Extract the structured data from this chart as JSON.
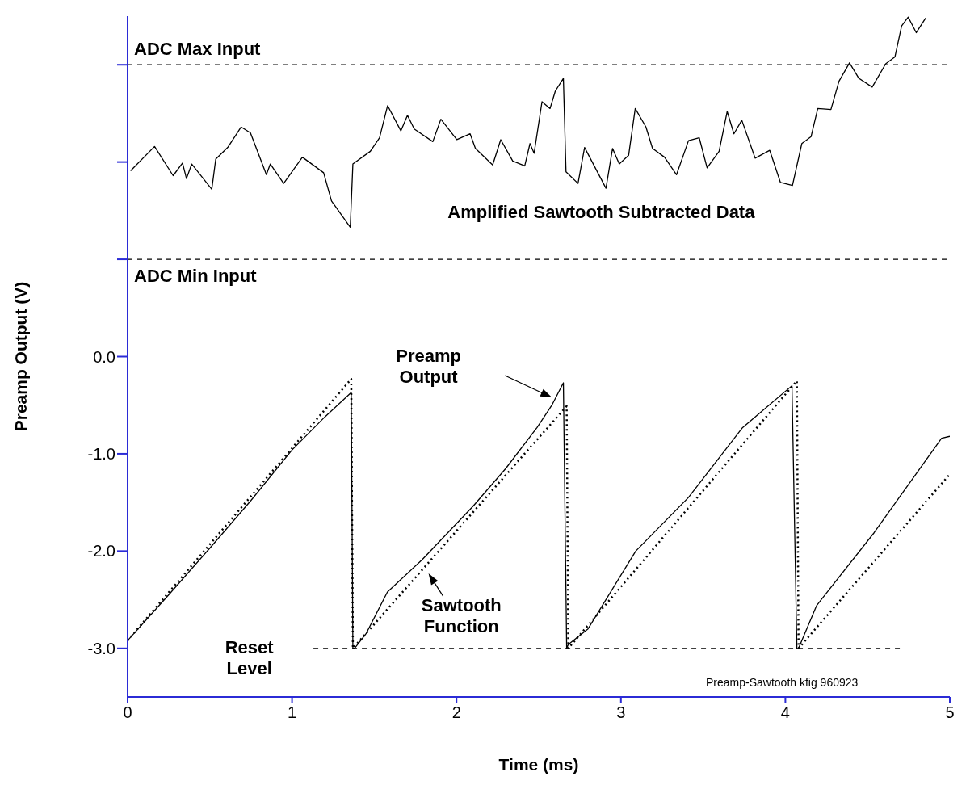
{
  "chart_data": {
    "type": "line",
    "xlabel": "Time (ms)",
    "ylabel": "Preamp Output (V)",
    "xlim": [
      0,
      5
    ],
    "xticks": [
      0,
      1,
      2,
      3,
      4,
      5
    ],
    "ylim": [
      -3.5,
      3.5
    ],
    "yticks": [
      {
        "value": -3,
        "label": "-3.0"
      },
      {
        "value": -2,
        "label": "-2.0"
      },
      {
        "value": -1,
        "label": "-1.0"
      },
      {
        "value": 0,
        "label": "0.0"
      },
      {
        "value": 1,
        "label": null
      },
      {
        "value": 2,
        "label": null
      },
      {
        "value": 3,
        "label": null
      }
    ],
    "tick_labels": "xy",
    "series": [
      {
        "name": "Amplified Sawtooth Subtracted Data",
        "color": "#000000",
        "line_style": "solid",
        "x": [
          0.018,
          0.164,
          0.277,
          0.334,
          0.358,
          0.39,
          0.512,
          0.536,
          0.609,
          0.69,
          0.747,
          0.844,
          0.868,
          0.949,
          1.063,
          1.192,
          1.24,
          1.354,
          1.37,
          1.476,
          1.532,
          1.581,
          1.662,
          1.702,
          1.743,
          1.856,
          1.905,
          2.002,
          2.083,
          2.115,
          2.22,
          2.269,
          2.342,
          2.415,
          2.447,
          2.472,
          2.52,
          2.569,
          2.601,
          2.65,
          2.666,
          2.739,
          2.779,
          2.909,
          2.949,
          2.99,
          3.047,
          3.087,
          3.152,
          3.192,
          3.265,
          3.338,
          3.411,
          3.476,
          3.524,
          3.597,
          3.646,
          3.687,
          3.735,
          3.816,
          3.905,
          3.97,
          4.043,
          4.1,
          4.156,
          4.197,
          4.277,
          4.326,
          4.39,
          4.447,
          4.528,
          4.61,
          4.666,
          4.707,
          4.747,
          4.796,
          4.853
        ],
        "values": [
          1.91,
          2.16,
          1.86,
          1.99,
          1.83,
          1.98,
          1.72,
          2.03,
          2.15,
          2.36,
          2.3,
          1.87,
          1.98,
          1.78,
          2.05,
          1.89,
          1.6,
          1.33,
          1.98,
          2.11,
          2.25,
          2.58,
          2.32,
          2.48,
          2.34,
          2.21,
          2.44,
          2.23,
          2.29,
          2.14,
          1.97,
          2.23,
          2.01,
          1.96,
          2.19,
          2.09,
          2.62,
          2.55,
          2.73,
          2.86,
          1.9,
          1.78,
          2.15,
          1.73,
          2.14,
          1.98,
          2.07,
          2.55,
          2.36,
          2.14,
          2.05,
          1.87,
          2.22,
          2.25,
          1.94,
          2.11,
          2.52,
          2.29,
          2.43,
          2.04,
          2.12,
          1.79,
          1.76,
          2.19,
          2.26,
          2.55,
          2.54,
          2.83,
          3.02,
          2.86,
          2.77,
          3.01,
          3.08,
          3.4,
          3.49,
          3.33,
          3.48
        ]
      },
      {
        "name": "Preamp Output",
        "color": "#000000",
        "line_style": "solid",
        "x": [
          0,
          0.25,
          0.5,
          0.75,
          1.0,
          1.2,
          1.36,
          1.37,
          1.38,
          1.45,
          1.58,
          1.79,
          2.1,
          2.3,
          2.49,
          2.58,
          2.65,
          2.67,
          2.68,
          2.8,
          3.09,
          3.41,
          3.74,
          4.04,
          4.07,
          4.08,
          4.19,
          4.54,
          4.95,
          5.0
        ],
        "values": [
          -2.92,
          -2.45,
          -1.97,
          -1.48,
          -0.96,
          -0.62,
          -0.37,
          -3.0,
          -3.0,
          -2.85,
          -2.42,
          -2.09,
          -1.54,
          -1.15,
          -0.73,
          -0.5,
          -0.27,
          -3.0,
          -2.96,
          -2.8,
          -2.0,
          -1.45,
          -0.73,
          -0.3,
          -3.0,
          -3.0,
          -2.56,
          -1.81,
          -0.84,
          -0.82
        ]
      },
      {
        "name": "Sawtooth Function",
        "color": "#000000",
        "line_style": "dotted",
        "x": [
          0,
          1.36,
          1.37,
          2.67,
          2.68,
          4.07,
          4.08,
          5.0
        ],
        "values": [
          -2.92,
          -0.23,
          -3.0,
          -0.51,
          -3.0,
          -0.25,
          -3.0,
          -1.21
        ]
      },
      {
        "name": "Reset Level",
        "color": "#000000",
        "line_style": "dashed",
        "x": [
          1.13,
          4.71
        ],
        "values": [
          -3.0,
          -3.0
        ]
      }
    ],
    "ref_lines": [
      {
        "axis": "y",
        "value": 3,
        "label": "ADC Max Input",
        "color": "#000000",
        "line_style": "dashed"
      },
      {
        "axis": "y",
        "value": 1,
        "label": "ADC Min Input",
        "color": "#000000",
        "line_style": "dashed"
      }
    ],
    "annotations": [
      "Preamp-Sawtooth kfig 960923"
    ]
  }
}
